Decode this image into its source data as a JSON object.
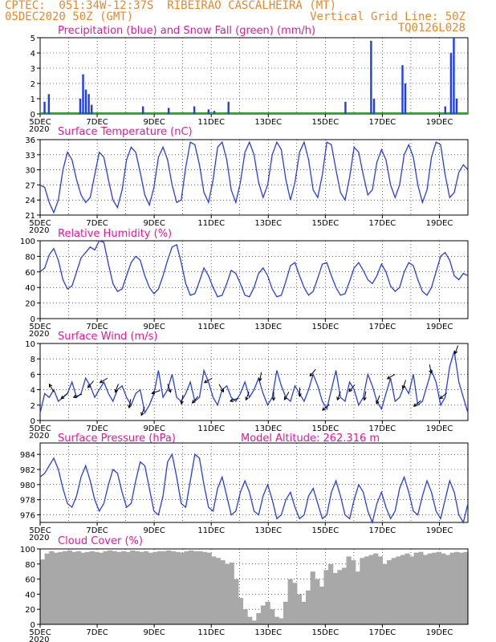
{
  "header": {
    "line1_left": "CPTEC:  051:34W-12:37S  RIBEIRAO CASCALHEIRA (MT)",
    "line2_left": "05DEC2020 50Z (GMT)",
    "line2_right": "Vertical Grid Line: 50Z",
    "line3_right": "TQ0126L028"
  },
  "x_ticks": [
    "5DEC",
    "7DEC",
    "9DEC",
    "11DEC",
    "13DEC",
    "15DEC",
    "17DEC",
    "19DEC"
  ],
  "x_sub": "2020",
  "colors": {
    "header": "#e5892b",
    "title": "#e0199b",
    "line": "#2a3fd9",
    "bar_precip": "#1f3fe8",
    "bar_snow": "#1bb21b",
    "cloud": "#a8a8a8"
  },
  "chart_data": [
    {
      "type": "bar",
      "title": "Precipitation (blue) and Snow Fall (green) (mm/h)",
      "ylim": [
        0,
        5
      ],
      "yticks": [
        0,
        1,
        2,
        3,
        4,
        5
      ],
      "series": [
        {
          "name": "Precipitation",
          "values": [
            [
              0.15,
              0.8
            ],
            [
              0.3,
              1.3
            ],
            [
              1.4,
              1.0
            ],
            [
              1.5,
              2.6
            ],
            [
              1.6,
              1.6
            ],
            [
              1.7,
              1.3
            ],
            [
              1.8,
              0.6
            ],
            [
              3.6,
              0.5
            ],
            [
              4.5,
              0.4
            ],
            [
              5.4,
              0.5
            ],
            [
              5.9,
              0.3
            ],
            [
              6.1,
              0.2
            ],
            [
              6.6,
              0.8
            ],
            [
              10.7,
              0.8
            ],
            [
              11.6,
              4.8
            ],
            [
              11.7,
              1.0
            ],
            [
              12.7,
              3.2
            ],
            [
              12.8,
              2.0
            ],
            [
              14.2,
              0.5
            ],
            [
              14.4,
              4.0
            ],
            [
              14.5,
              5.0
            ],
            [
              14.6,
              1.0
            ]
          ]
        },
        {
          "name": "Snow Fall",
          "values": []
        }
      ]
    },
    {
      "type": "line",
      "title": "Surface Temperature (nC)",
      "ylim": [
        21,
        36
      ],
      "yticks": [
        21,
        24,
        27,
        30,
        33,
        36
      ],
      "series": [
        {
          "values": [
            27,
            26.5,
            23.5,
            21.5,
            24.0,
            30.0,
            33.5,
            32.0,
            28.0,
            25.0,
            23.5,
            24.5,
            29.0,
            33.5,
            32.5,
            28.0,
            24.0,
            22.5,
            26.0,
            32.0,
            34.5,
            33.5,
            29.5,
            25.0,
            23.0,
            26.5,
            32.5,
            34.5,
            32.0,
            27.0,
            23.5,
            24.0,
            30.5,
            35.5,
            35.0,
            31.0,
            25.5,
            23.5,
            28.0,
            34.5,
            35.5,
            32.0,
            26.0,
            23.5,
            27.5,
            33.5,
            35.5,
            33.0,
            27.5,
            24.5,
            27.0,
            33.0,
            35.5,
            34.0,
            28.0,
            24.0,
            27.5,
            33.5,
            35.5,
            32.0,
            26.0,
            24.5,
            29.0,
            35.5,
            35.0,
            30.0,
            25.5,
            24.0,
            28.5,
            34.5,
            33.5,
            29.0,
            25.0,
            26.0,
            31.5,
            34.0,
            32.0,
            27.0,
            24.5,
            27.0,
            33.0,
            35.0,
            32.5,
            27.0,
            23.5,
            26.0,
            32.5,
            35.5,
            35.0,
            29.0,
            24.5,
            25.5,
            29.5,
            31.0,
            30.0
          ]
        }
      ]
    },
    {
      "type": "line",
      "title": "Relative Humidity (%)",
      "ylim": [
        0,
        100
      ],
      "yticks": [
        0,
        20,
        40,
        60,
        80,
        100
      ],
      "series": [
        {
          "values": [
            60,
            65,
            82,
            90,
            75,
            50,
            38,
            42,
            60,
            78,
            85,
            92,
            88,
            100,
            98,
            70,
            45,
            35,
            38,
            55,
            72,
            80,
            75,
            55,
            40,
            32,
            38,
            55,
            75,
            92,
            95,
            72,
            45,
            30,
            32,
            48,
            65,
            55,
            40,
            28,
            30,
            45,
            62,
            58,
            45,
            30,
            28,
            40,
            58,
            65,
            55,
            38,
            28,
            30,
            48,
            68,
            72,
            55,
            40,
            30,
            35,
            52,
            70,
            72,
            55,
            40,
            30,
            32,
            48,
            65,
            72,
            62,
            50,
            45,
            55,
            70,
            60,
            42,
            35,
            40,
            60,
            72,
            68,
            50,
            35,
            30,
            40,
            60,
            80,
            85,
            75,
            55,
            50,
            58,
            55
          ]
        }
      ]
    },
    {
      "type": "line",
      "title": "Surface Wind (m/s)",
      "ylim": [
        0,
        10
      ],
      "yticks": [
        0,
        2,
        4,
        6,
        8,
        10
      ],
      "series": [
        {
          "values": [
            1,
            3.5,
            3.0,
            4.0,
            2.5,
            3.0,
            3.5,
            5.0,
            3.0,
            3.5,
            5.5,
            4.5,
            3.0,
            4.0,
            5.0,
            3.5,
            2.5,
            4.0,
            4.5,
            3.0,
            2.0,
            3.5,
            4.0,
            1.0,
            2.0,
            3.5,
            6.5,
            3.0,
            4.0,
            6.0,
            3.0,
            2.5,
            3.5,
            5.0,
            2.5,
            3.0,
            6.5,
            5.0,
            3.0,
            2.0,
            4.0,
            4.5,
            3.0,
            2.5,
            3.5,
            5.0,
            3.0,
            4.0,
            5.5,
            3.5,
            2.0,
            3.0,
            6.5,
            4.5,
            3.0,
            2.5,
            4.5,
            3.5,
            2.5,
            4.0,
            6.0,
            4.5,
            2.5,
            1.5,
            4.0,
            6.5,
            3.0,
            2.5,
            5.0,
            4.0,
            2.0,
            3.0,
            6.0,
            4.5,
            2.5,
            1.5,
            3.5,
            5.5,
            2.5,
            3.0,
            4.5,
            3.5,
            6.0,
            2.0,
            2.5,
            4.5,
            6.5,
            5.0,
            2.0,
            3.0,
            7.0,
            9.0,
            5.0,
            3.0,
            1.0
          ]
        }
      ],
      "arrows_deg": [
        120,
        220,
        200,
        230,
        210,
        250,
        260,
        250,
        200,
        290,
        260,
        230,
        210,
        300,
        200,
        250,
        260,
        270,
        240,
        270,
        230,
        220,
        250,
        230,
        260,
        250,
        210,
        250,
        220,
        280,
        220,
        250
      ]
    },
    {
      "type": "line",
      "title": "Surface Pressure (hPa)",
      "annotation": "Model Altitude: 262.316 m",
      "ylim": [
        975,
        985.5
      ],
      "yticks": [
        976,
        978,
        980,
        982,
        984
      ],
      "series": [
        {
          "values": [
            981.0,
            981.5,
            982.5,
            983.5,
            982.0,
            979.5,
            977.5,
            977.0,
            978.5,
            981.0,
            982.5,
            980.5,
            978.0,
            976.5,
            977.5,
            980.0,
            982.0,
            981.5,
            979.0,
            977.0,
            977.5,
            980.5,
            983.0,
            982.5,
            979.5,
            976.5,
            976.0,
            978.5,
            983.0,
            984.0,
            981.0,
            977.5,
            977.0,
            980.5,
            984.0,
            983.5,
            980.0,
            977.0,
            976.5,
            979.5,
            981.0,
            978.5,
            976.0,
            976.5,
            979.0,
            980.5,
            979.0,
            976.5,
            976.0,
            978.5,
            980.0,
            978.0,
            975.5,
            976.0,
            978.0,
            979.0,
            977.0,
            975.5,
            976.0,
            978.5,
            979.5,
            977.5,
            975.5,
            976.0,
            979.0,
            980.5,
            978.5,
            976.0,
            975.5,
            978.0,
            980.0,
            979.0,
            976.5,
            975.0,
            977.5,
            979.0,
            977.0,
            975.5,
            976.5,
            979.5,
            981.0,
            979.0,
            976.5,
            976.0,
            978.5,
            980.5,
            979.0,
            976.5,
            975.5,
            978.0,
            980.5,
            979.0,
            976.0,
            975.0,
            977.5
          ]
        }
      ]
    },
    {
      "type": "area",
      "title": "Cloud Cover (%)",
      "ylim": [
        0,
        100
      ],
      "yticks": [
        0,
        20,
        40,
        60,
        80,
        100
      ],
      "series": [
        {
          "values": [
            86,
            94,
            97,
            95,
            96,
            97,
            98,
            96,
            97,
            95,
            96,
            97,
            96,
            95,
            97,
            98,
            97,
            96,
            97,
            96,
            98,
            97,
            96,
            97,
            95,
            96,
            97,
            97,
            98,
            97,
            96,
            95,
            97,
            98,
            97,
            97,
            96,
            95,
            90,
            88,
            85,
            80,
            82,
            60,
            35,
            20,
            10,
            5,
            15,
            25,
            30,
            20,
            10,
            8,
            30,
            60,
            55,
            40,
            30,
            45,
            70,
            60,
            50,
            72,
            80,
            68,
            72,
            75,
            90,
            85,
            70,
            88,
            90,
            92,
            94,
            90,
            80,
            85,
            88,
            90,
            92,
            94,
            90,
            95,
            96,
            92,
            94,
            95,
            96,
            94,
            92,
            95,
            96,
            95,
            96
          ]
        }
      ]
    }
  ]
}
